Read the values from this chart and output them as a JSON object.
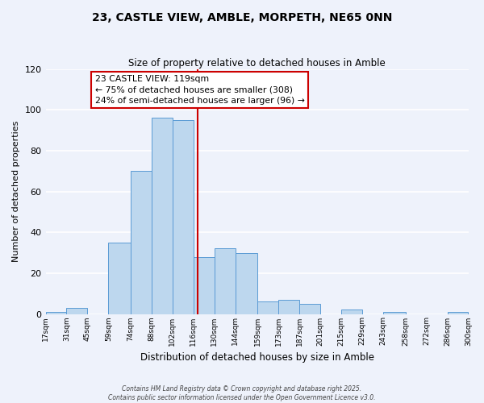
{
  "title": "23, CASTLE VIEW, AMBLE, MORPETH, NE65 0NN",
  "subtitle": "Size of property relative to detached houses in Amble",
  "xlabel": "Distribution of detached houses by size in Amble",
  "ylabel": "Number of detached properties",
  "bin_labels": [
    "17sqm",
    "31sqm",
    "45sqm",
    "59sqm",
    "74sqm",
    "88sqm",
    "102sqm",
    "116sqm",
    "130sqm",
    "144sqm",
    "159sqm",
    "173sqm",
    "187sqm",
    "201sqm",
    "215sqm",
    "229sqm",
    "243sqm",
    "258sqm",
    "272sqm",
    "286sqm",
    "300sqm"
  ],
  "bin_edges": [
    17,
    31,
    45,
    59,
    74,
    88,
    102,
    116,
    130,
    144,
    159,
    173,
    187,
    201,
    215,
    229,
    243,
    258,
    272,
    286,
    300
  ],
  "bar_heights": [
    1,
    3,
    0,
    35,
    70,
    96,
    95,
    28,
    32,
    30,
    6,
    7,
    5,
    0,
    2,
    0,
    1,
    0,
    0,
    1
  ],
  "bar_color": "#bdd7ee",
  "bar_edge_color": "#5b9bd5",
  "bg_color": "#eef2fb",
  "grid_color": "#ffffff",
  "vline_x": 119,
  "vline_color": "#cc0000",
  "annotation_text": "23 CASTLE VIEW: 119sqm\n← 75% of detached houses are smaller (308)\n24% of semi-detached houses are larger (96) →",
  "annotation_box_color": "#ffffff",
  "annotation_box_edge": "#cc0000",
  "ylim": [
    0,
    120
  ],
  "yticks": [
    0,
    20,
    40,
    60,
    80,
    100,
    120
  ],
  "footnote1": "Contains HM Land Registry data © Crown copyright and database right 2025.",
  "footnote2": "Contains public sector information licensed under the Open Government Licence v3.0."
}
